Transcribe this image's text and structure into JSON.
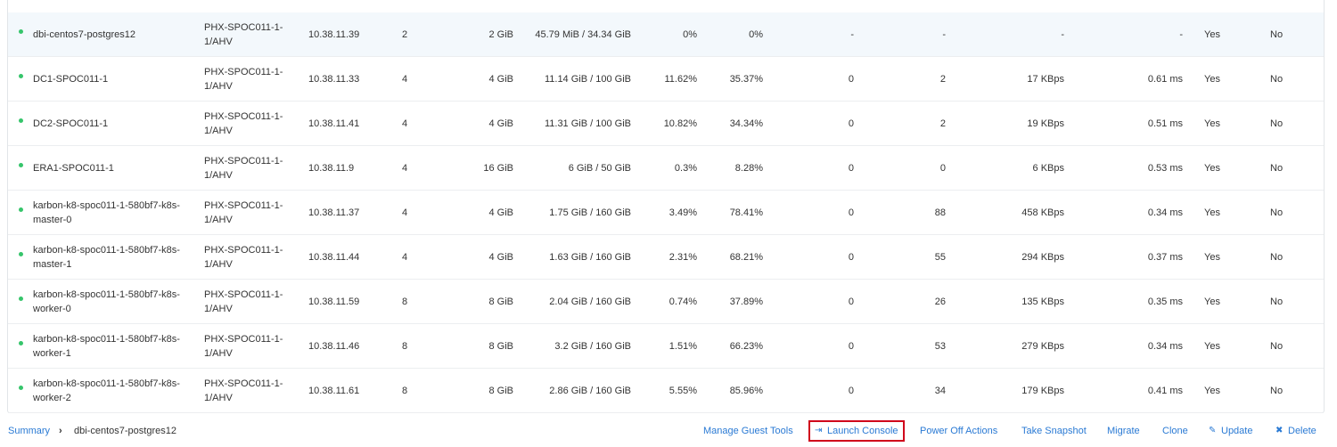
{
  "table": {
    "rows": [
      [
        "dbi-centos7-postgres12",
        "PHX-SPOC011-1-1/AHV",
        "10.38.11.39",
        "2",
        "2 GiB",
        "45.79 MiB / 34.34 GiB",
        "0%",
        "0%",
        "-",
        "-",
        "-",
        "-",
        "Yes",
        "No"
      ],
      [
        "DC1-SPOC011-1",
        "PHX-SPOC011-1-1/AHV",
        "10.38.11.33",
        "4",
        "4 GiB",
        "11.14 GiB / 100 GiB",
        "11.62%",
        "35.37%",
        "0",
        "2",
        "17 KBps",
        "0.61 ms",
        "Yes",
        "No"
      ],
      [
        "DC2-SPOC011-1",
        "PHX-SPOC011-1-1/AHV",
        "10.38.11.41",
        "4",
        "4 GiB",
        "11.31 GiB / 100 GiB",
        "10.82%",
        "34.34%",
        "0",
        "2",
        "19 KBps",
        "0.51 ms",
        "Yes",
        "No"
      ],
      [
        "ERA1-SPOC011-1",
        "PHX-SPOC011-1-1/AHV",
        "10.38.11.9",
        "4",
        "16 GiB",
        "6 GiB / 50 GiB",
        "0.3%",
        "8.28%",
        "0",
        "0",
        "6 KBps",
        "0.53 ms",
        "Yes",
        "No"
      ],
      [
        "karbon-k8-spoc011-1-580bf7-k8s-master-0",
        "PHX-SPOC011-1-1/AHV",
        "10.38.11.37",
        "4",
        "4 GiB",
        "1.75 GiB / 160 GiB",
        "3.49%",
        "78.41%",
        "0",
        "88",
        "458 KBps",
        "0.34 ms",
        "Yes",
        "No"
      ],
      [
        "karbon-k8-spoc011-1-580bf7-k8s-master-1",
        "PHX-SPOC011-1-1/AHV",
        "10.38.11.44",
        "4",
        "4 GiB",
        "1.63 GiB / 160 GiB",
        "2.31%",
        "68.21%",
        "0",
        "55",
        "294 KBps",
        "0.37 ms",
        "Yes",
        "No"
      ],
      [
        "karbon-k8-spoc011-1-580bf7-k8s-worker-0",
        "PHX-SPOC011-1-1/AHV",
        "10.38.11.59",
        "8",
        "8 GiB",
        "2.04 GiB / 160 GiB",
        "0.74%",
        "37.89%",
        "0",
        "26",
        "135 KBps",
        "0.35 ms",
        "Yes",
        "No"
      ],
      [
        "karbon-k8-spoc011-1-580bf7-k8s-worker-1",
        "PHX-SPOC011-1-1/AHV",
        "10.38.11.46",
        "8",
        "8 GiB",
        "3.2 GiB / 160 GiB",
        "1.51%",
        "66.23%",
        "0",
        "53",
        "279 KBps",
        "0.34 ms",
        "Yes",
        "No"
      ],
      [
        "karbon-k8-spoc011-1-580bf7-k8s-worker-2",
        "PHX-SPOC011-1-1/AHV",
        "10.38.11.61",
        "8",
        "8 GiB",
        "2.86 GiB / 160 GiB",
        "5.55%",
        "85.96%",
        "0",
        "34",
        "179 KBps",
        "0.41 ms",
        "Yes",
        "No"
      ]
    ]
  },
  "footer": {
    "breadcrumb": [
      "Summary",
      "dbi-centos7-postgres12"
    ],
    "actions": [
      "Manage Guest Tools",
      "Launch Console",
      "Power Off Actions",
      "Take Snapshot",
      "Migrate",
      "Clone",
      "Update",
      "Delete"
    ]
  }
}
